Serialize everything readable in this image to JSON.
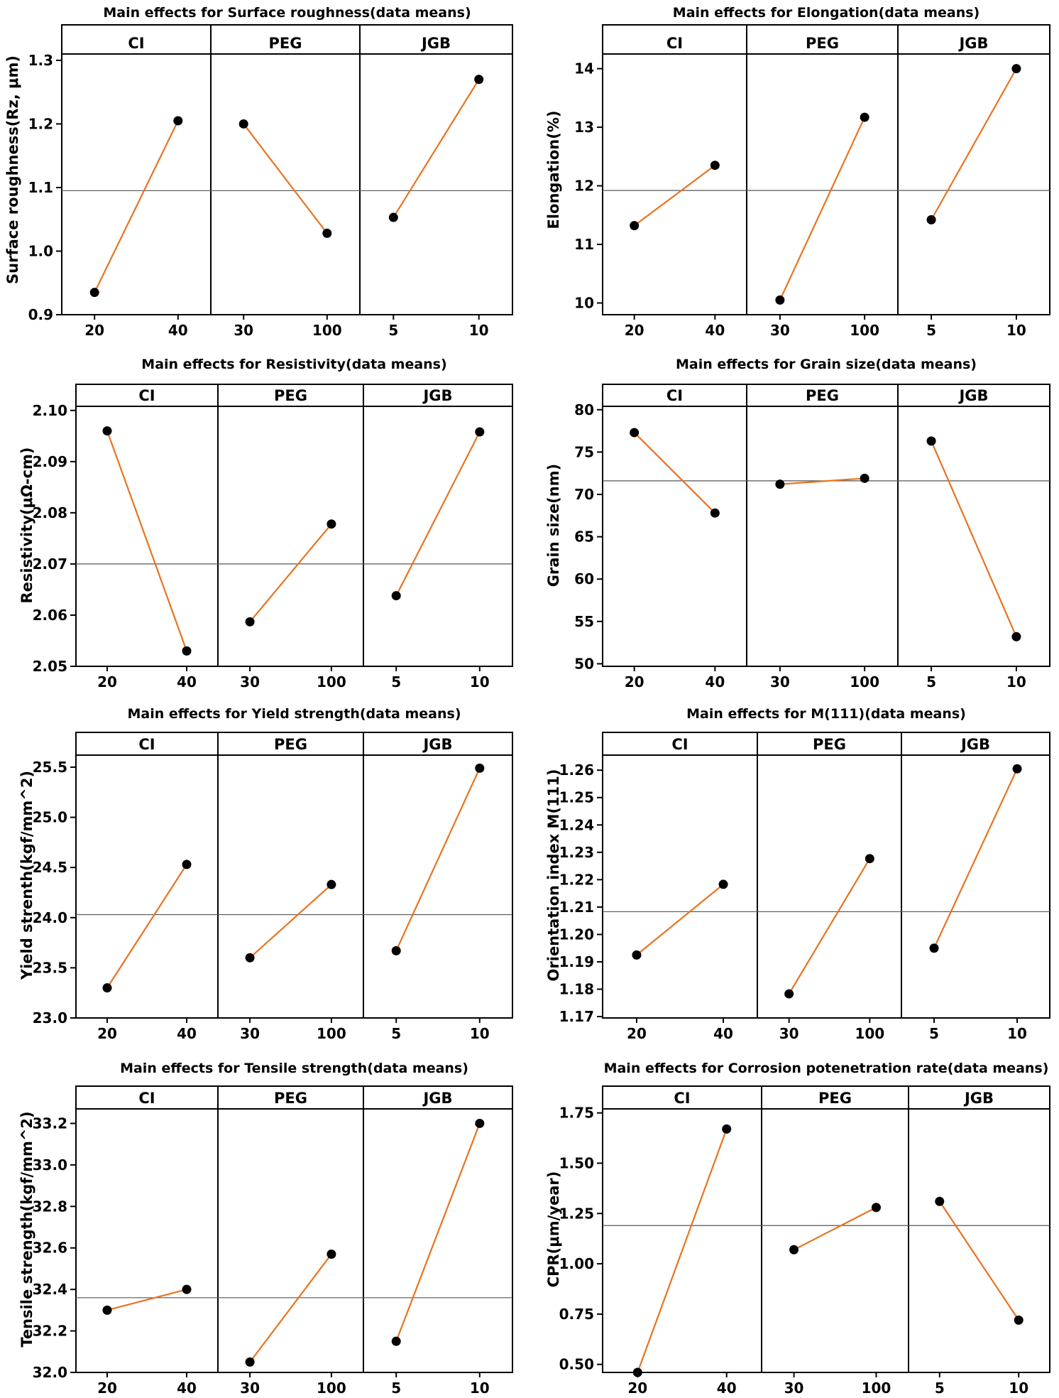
{
  "factors": [
    {
      "name": "CI",
      "levels": [
        "20",
        "40"
      ]
    },
    {
      "name": "PEG",
      "levels": [
        "30",
        "100"
      ]
    },
    {
      "name": "JGB",
      "levels": [
        "5",
        "10"
      ]
    }
  ],
  "colors": {
    "line": "#E8731F",
    "point": "#000000",
    "mean_line": "#555555",
    "frame": "#000000"
  },
  "chart_data": [
    {
      "type": "line",
      "title": "Main effects for Surface roughness(data means)",
      "ylabel": "Surface roughness(Rz, μm)",
      "ylim": [
        0.9,
        1.31
      ],
      "yticks": [
        "0.9",
        "1.0",
        "1.1",
        "1.2",
        "1.3"
      ],
      "mean": 1.095,
      "series": [
        {
          "factor": "CI",
          "x": [
            "20",
            "40"
          ],
          "values": [
            0.935,
            1.205
          ]
        },
        {
          "factor": "PEG",
          "x": [
            "30",
            "100"
          ],
          "values": [
            1.2,
            1.028
          ]
        },
        {
          "factor": "JGB",
          "x": [
            "5",
            "10"
          ],
          "values": [
            1.053,
            1.27
          ]
        }
      ]
    },
    {
      "type": "line",
      "title": "Main effects for Elongation(data means)",
      "ylabel": "Elongation(%)",
      "ylim": [
        9.8,
        14.25
      ],
      "yticks": [
        "10",
        "11",
        "12",
        "13",
        "14"
      ],
      "mean": 11.92,
      "series": [
        {
          "factor": "CI",
          "x": [
            "20",
            "40"
          ],
          "values": [
            11.32,
            12.35
          ]
        },
        {
          "factor": "PEG",
          "x": [
            "30",
            "100"
          ],
          "values": [
            10.05,
            13.17
          ]
        },
        {
          "factor": "JGB",
          "x": [
            "5",
            "10"
          ],
          "values": [
            11.42,
            14.0
          ]
        }
      ]
    },
    {
      "type": "line",
      "title": "Main effects for Resistivity(data means)",
      "ylabel": "Resistivity(μΩ-cm)",
      "ylim": [
        2.05,
        2.1008
      ],
      "yticks": [
        "2.05",
        "2.06",
        "2.07",
        "2.08",
        "2.09",
        "2.10"
      ],
      "mean": 2.07,
      "series": [
        {
          "factor": "CI",
          "x": [
            "20",
            "40"
          ],
          "values": [
            2.096,
            2.053
          ]
        },
        {
          "factor": "PEG",
          "x": [
            "30",
            "100"
          ],
          "values": [
            2.0587,
            2.0778
          ]
        },
        {
          "factor": "JGB",
          "x": [
            "5",
            "10"
          ],
          "values": [
            2.0638,
            2.0958
          ]
        }
      ]
    },
    {
      "type": "line",
      "title": "Main effects for Grain size(data means)",
      "ylabel": "Grain size(nm)",
      "ylim": [
        49.7,
        80.4
      ],
      "yticks": [
        "50",
        "55",
        "60",
        "65",
        "70",
        "75",
        "80"
      ],
      "mean": 71.6,
      "series": [
        {
          "factor": "CI",
          "x": [
            "20",
            "40"
          ],
          "values": [
            77.3,
            67.8
          ]
        },
        {
          "factor": "PEG",
          "x": [
            "30",
            "100"
          ],
          "values": [
            71.2,
            71.9
          ]
        },
        {
          "factor": "JGB",
          "x": [
            "5",
            "10"
          ],
          "values": [
            76.3,
            53.2
          ]
        }
      ]
    },
    {
      "type": "line",
      "title": "Main effects for Yield strength(data means)",
      "ylabel": "Yield strenth(kgf/mm^2)",
      "ylim": [
        23.0,
        25.62
      ],
      "yticks": [
        "23.0",
        "23.5",
        "24.0",
        "24.5",
        "25.0",
        "25.5"
      ],
      "mean": 24.03,
      "series": [
        {
          "factor": "CI",
          "x": [
            "20",
            "40"
          ],
          "values": [
            23.3,
            24.53
          ]
        },
        {
          "factor": "PEG",
          "x": [
            "30",
            "100"
          ],
          "values": [
            23.6,
            24.33
          ]
        },
        {
          "factor": "JGB",
          "x": [
            "5",
            "10"
          ],
          "values": [
            23.67,
            25.49
          ]
        }
      ]
    },
    {
      "type": "line",
      "title": "Main effects for M(111)(data means)",
      "ylabel": "Orientation index M(111)",
      "ylim": [
        1.1695,
        1.2655
      ],
      "yticks": [
        "1.17",
        "1.18",
        "1.19",
        "1.20",
        "1.21",
        "1.22",
        "1.23",
        "1.24",
        "1.25",
        "1.26"
      ],
      "mean": 1.2083,
      "series": [
        {
          "factor": "CI",
          "x": [
            "20",
            "40"
          ],
          "values": [
            1.1925,
            1.2183
          ]
        },
        {
          "factor": "PEG",
          "x": [
            "30",
            "100"
          ],
          "values": [
            1.1783,
            1.2277
          ]
        },
        {
          "factor": "JGB",
          "x": [
            "5",
            "10"
          ],
          "values": [
            1.195,
            1.2605
          ]
        }
      ]
    },
    {
      "type": "line",
      "title": "Main effects for Tensile strength(data means)",
      "ylabel": "Tensile strength(kgf/mm^2)",
      "ylim": [
        32.0,
        33.27
      ],
      "yticks": [
        "32.0",
        "32.2",
        "32.4",
        "32.6",
        "32.8",
        "33.0",
        "33.2"
      ],
      "mean": 32.36,
      "series": [
        {
          "factor": "CI",
          "x": [
            "20",
            "40"
          ],
          "values": [
            32.3,
            32.4
          ]
        },
        {
          "factor": "PEG",
          "x": [
            "30",
            "100"
          ],
          "values": [
            32.05,
            32.57
          ]
        },
        {
          "factor": "JGB",
          "x": [
            "5",
            "10"
          ],
          "values": [
            32.15,
            33.2
          ]
        }
      ]
    },
    {
      "type": "line",
      "title": "Main effects for Corrosion potenetration rate(data means)",
      "ylabel": "CPR(μm/year)",
      "ylim": [
        0.46,
        1.77
      ],
      "yticks": [
        "0.50",
        "0.75",
        "1.00",
        "1.25",
        "1.50",
        "1.75"
      ],
      "mean": 1.19,
      "series": [
        {
          "factor": "CI",
          "x": [
            "20",
            "40"
          ],
          "values": [
            0.46,
            1.67
          ]
        },
        {
          "factor": "PEG",
          "x": [
            "30",
            "100"
          ],
          "values": [
            1.07,
            1.28
          ]
        },
        {
          "factor": "JGB",
          "x": [
            "5",
            "10"
          ],
          "values": [
            1.31,
            0.72
          ]
        }
      ]
    }
  ]
}
